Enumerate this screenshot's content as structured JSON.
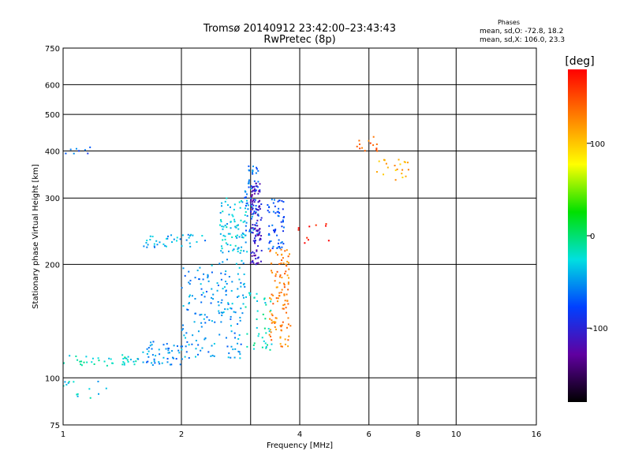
{
  "chart_data": {
    "type": "scatter",
    "title": "Tromsø 20140912 23:42:00–23:43:43",
    "subtitle": "RwPretec (8p)",
    "xlabel": "Frequency [MHz]",
    "ylabel": "Stationary phase Virtual Height [km]",
    "x_scale": "log",
    "y_scale": "log",
    "xlim": [
      1,
      16
    ],
    "ylim": [
      75,
      750
    ],
    "x_ticks": [
      1,
      2,
      4,
      6,
      8,
      10,
      16
    ],
    "x_tick_labels": [
      "1",
      "2",
      "4",
      "6",
      "8",
      "10",
      "16"
    ],
    "x_gridlines": [
      2,
      3,
      4,
      6,
      8,
      10
    ],
    "y_ticks": [
      75,
      100,
      200,
      300,
      400,
      500,
      600,
      750
    ],
    "y_tick_labels": [
      "75",
      "100",
      "200",
      "300",
      "400",
      "500",
      "600",
      "750"
    ],
    "y_gridlines": [
      100,
      200,
      300,
      400,
      500,
      600
    ],
    "grid": true,
    "legend": {
      "title": "Phases",
      "line1": "mean, sd,O: -72.8, 18.2",
      "line2": "mean, sd,X: 106.0, 23.3",
      "placement": "top-right"
    },
    "colorbar": {
      "label": "[deg]",
      "range": [
        -180,
        180
      ],
      "ticks": [
        100,
        0,
        -100
      ],
      "tick_labels": [
        "100",
        "0",
        "-100"
      ],
      "colors": [
        "#ff0000",
        "#ff8000",
        "#ffff00",
        "#00e000",
        "#00e0e0",
        "#0040ff",
        "#6000a0",
        "#000000"
      ]
    },
    "clusters": [
      {
        "x_range": [
          1.0,
          1.55
        ],
        "y_range": [
          107,
          115
        ],
        "phase": -20,
        "n": 40
      },
      {
        "x_range": [
          1.55,
          2.0
        ],
        "y_range": [
          108,
          125
        ],
        "phase": -55,
        "n": 50
      },
      {
        "x_range": [
          2.0,
          2.9
        ],
        "y_range": [
          112,
          200
        ],
        "phase": -50,
        "n": 170
      },
      {
        "x_range": [
          2.5,
          2.95
        ],
        "y_range": [
          200,
          300
        ],
        "phase": -35,
        "n": 90
      },
      {
        "x_range": [
          2.9,
          3.15
        ],
        "y_range": [
          240,
          370
        ],
        "phase": -60,
        "n": 60
      },
      {
        "x_range": [
          3.0,
          3.2
        ],
        "y_range": [
          200,
          330
        ],
        "phase": -110,
        "n": 110
      },
      {
        "x_range": [
          3.3,
          3.65
        ],
        "y_range": [
          220,
          300
        ],
        "phase": -70,
        "n": 60
      },
      {
        "x_range": [
          3.35,
          3.8
        ],
        "y_range": [
          120,
          220
        ],
        "phase": 130,
        "n": 110
      },
      {
        "x_range": [
          1.6,
          2.3
        ],
        "y_range": [
          222,
          240
        ],
        "phase": -45,
        "n": 40
      },
      {
        "x_range": [
          2.9,
          3.4
        ],
        "y_range": [
          118,
          170
        ],
        "phase": -20,
        "n": 40
      },
      {
        "x_range": [
          1.0,
          1.3
        ],
        "y_range": [
          88,
          98
        ],
        "phase": -30,
        "n": 14
      },
      {
        "x_range": [
          1.0,
          1.2
        ],
        "y_range": [
          375,
          410
        ],
        "phase": -70,
        "n": 8
      },
      {
        "x_range": [
          5.5,
          6.3
        ],
        "y_range": [
          395,
          440
        ],
        "phase": 140,
        "n": 14
      },
      {
        "x_range": [
          6.2,
          7.6
        ],
        "y_range": [
          335,
          380
        ],
        "phase": 110,
        "n": 22
      },
      {
        "x_range": [
          3.9,
          4.8
        ],
        "y_range": [
          225,
          260
        ],
        "phase": 180,
        "n": 10
      }
    ]
  }
}
